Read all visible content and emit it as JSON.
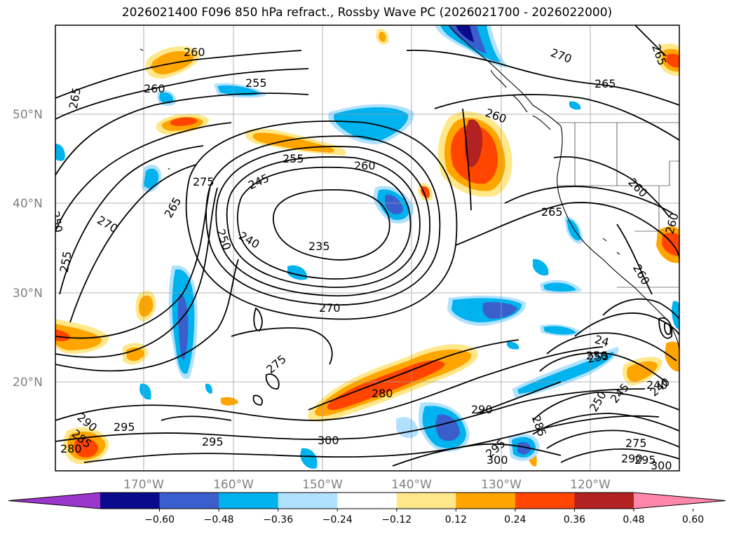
{
  "title": "2026021400 F096 850 hPa refract., Rossby Wave PC (2026021700 - 2026022000)",
  "lat_labels": [
    "50°N",
    "40°N",
    "30°N",
    "20°N"
  ],
  "lon_labels": [
    "170°W",
    "160°W",
    "150°W",
    "140°W",
    "130°W",
    "120°W"
  ],
  "colorbar": {
    "ticks": [
      "−0.60",
      "−0.48",
      "−0.36",
      "−0.24",
      "−0.12",
      "0.12",
      "0.24",
      "0.36",
      "0.48",
      "0.60"
    ],
    "colors": [
      "#9a36c9",
      "#0a0a8c",
      "#3a5fcd",
      "#00b2ee",
      "#b0e2ff",
      "#ffffff",
      "#ffe88a",
      "#ffa500",
      "#ff4500",
      "#b22222",
      "#ff88aa"
    ]
  },
  "contour_labels": [
    {
      "text": "260"
    },
    {
      "text": "265"
    },
    {
      "text": "255"
    },
    {
      "text": "260"
    },
    {
      "text": "270"
    },
    {
      "text": "265"
    },
    {
      "text": "260"
    },
    {
      "text": "255"
    },
    {
      "text": "260"
    },
    {
      "text": "245"
    },
    {
      "text": "275"
    },
    {
      "text": "265"
    },
    {
      "text": "270"
    },
    {
      "text": "250"
    },
    {
      "text": "240"
    },
    {
      "text": "235"
    },
    {
      "text": "250"
    },
    {
      "text": "255"
    },
    {
      "text": "265"
    },
    {
      "text": "260"
    },
    {
      "text": "260"
    },
    {
      "text": "270"
    },
    {
      "text": "275"
    },
    {
      "text": "280"
    },
    {
      "text": "290"
    },
    {
      "text": "295"
    },
    {
      "text": "300"
    },
    {
      "text": "295"
    },
    {
      "text": "290"
    },
    {
      "text": "280"
    },
    {
      "text": "285"
    },
    {
      "text": "295"
    },
    {
      "text": "300"
    },
    {
      "text": "285"
    },
    {
      "text": "255"
    },
    {
      "text": "250"
    },
    {
      "text": "245"
    },
    {
      "text": "240"
    },
    {
      "text": "275"
    },
    {
      "text": "290"
    },
    {
      "text": "295"
    },
    {
      "text": "300"
    },
    {
      "text": "265"
    },
    {
      "text": "260"
    },
    {
      "text": "250"
    },
    {
      "text": "240"
    },
    {
      "text": "24"
    }
  ]
}
